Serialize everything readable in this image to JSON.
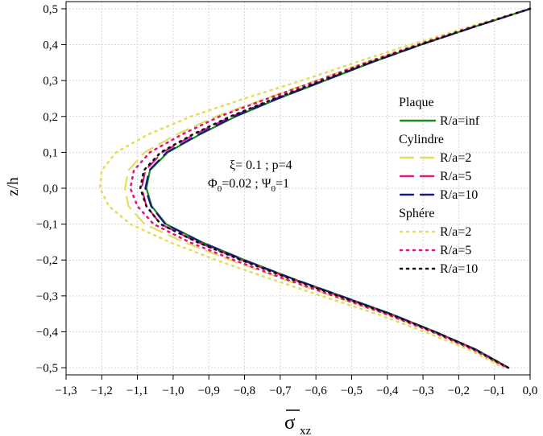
{
  "chart_data": {
    "type": "line",
    "xlabel": "σ",
    "xlabel_sub": "xz",
    "ylabel": "z/h",
    "xlim": [
      -1.3,
      0.0
    ],
    "ylim": [
      -0.52,
      0.52
    ],
    "x_ticks": [
      "−1,3",
      "−1,2",
      "−1,1",
      "−1,0",
      "−0,9",
      "−0,8",
      "−0,7",
      "−0,6",
      "−0,5",
      "−0,4",
      "−0,3",
      "−0,2",
      "−0,1",
      "0,0"
    ],
    "x_tick_values": [
      -1.3,
      -1.2,
      -1.1,
      -1.0,
      -0.9,
      -0.8,
      -0.7,
      -0.6,
      -0.5,
      -0.4,
      -0.3,
      -0.2,
      -0.1,
      0.0
    ],
    "y_ticks": [
      "0,5",
      "0,4",
      "0,3",
      "0,2",
      "0,1",
      "0,0",
      "−0,1",
      "−0,2",
      "−0,3",
      "−0,4",
      "−0,5"
    ],
    "y_tick_values": [
      0.5,
      0.4,
      0.3,
      0.2,
      0.1,
      0.0,
      -0.1,
      -0.2,
      -0.3,
      -0.4,
      -0.5
    ],
    "grid": true,
    "legend_position": "right",
    "annotation_line1": "ξ= 0.1 ; p=4",
    "annotation_line2_a": "Φ",
    "annotation_line2_b": "0",
    "annotation_line2_c": "=0.02 ; Ψ",
    "annotation_line2_d": "0",
    "annotation_line2_e": "=1",
    "legend_groups": [
      {
        "title": "Plaque",
        "entries": [
          0
        ]
      },
      {
        "title": "Cylindre",
        "entries": [
          1,
          2,
          3
        ]
      },
      {
        "title": "Sphére",
        "entries": [
          4,
          5,
          6
        ]
      }
    ],
    "series": [
      {
        "name": "R/a=inf",
        "color": "#1a8a1a",
        "dash": "solid",
        "y": [
          0.5,
          0.45,
          0.4,
          0.35,
          0.3,
          0.25,
          0.2,
          0.15,
          0.1,
          0.05,
          0.0,
          -0.05,
          -0.1,
          -0.15,
          -0.2,
          -0.25,
          -0.3,
          -0.35,
          -0.4,
          -0.45,
          -0.5
        ],
        "x": [
          0.0,
          -0.155,
          -0.305,
          -0.445,
          -0.575,
          -0.705,
          -0.825,
          -0.925,
          -1.015,
          -1.065,
          -1.075,
          -1.06,
          -1.02,
          -0.92,
          -0.8,
          -0.67,
          -0.53,
          -0.39,
          -0.265,
          -0.15,
          -0.06
        ]
      },
      {
        "name": "R/a=2",
        "color": "#e3de5e",
        "dash": "longdash",
        "y": [
          0.5,
          0.45,
          0.4,
          0.35,
          0.3,
          0.25,
          0.2,
          0.15,
          0.1,
          0.05,
          0.0,
          -0.05,
          -0.1,
          -0.15,
          -0.2,
          -0.25,
          -0.3,
          -0.35,
          -0.4,
          -0.45,
          -0.5
        ],
        "x": [
          0.0,
          -0.16,
          -0.315,
          -0.46,
          -0.6,
          -0.74,
          -0.88,
          -0.99,
          -1.08,
          -1.125,
          -1.135,
          -1.125,
          -1.08,
          -0.97,
          -0.84,
          -0.7,
          -0.555,
          -0.405,
          -0.275,
          -0.16,
          -0.07
        ]
      },
      {
        "name": "R/a=5",
        "color": "#e0177e",
        "dash": "longdash",
        "y": [
          0.5,
          0.45,
          0.4,
          0.35,
          0.3,
          0.25,
          0.2,
          0.15,
          0.1,
          0.05,
          0.0,
          -0.05,
          -0.1,
          -0.15,
          -0.2,
          -0.25,
          -0.3,
          -0.35,
          -0.4,
          -0.45,
          -0.5
        ],
        "x": [
          0.0,
          -0.156,
          -0.307,
          -0.448,
          -0.58,
          -0.712,
          -0.836,
          -0.94,
          -1.03,
          -1.078,
          -1.088,
          -1.075,
          -1.035,
          -0.932,
          -0.808,
          -0.676,
          -0.535,
          -0.393,
          -0.267,
          -0.152,
          -0.062
        ]
      },
      {
        "name": "R/a=10",
        "color": "#1a1a80",
        "dash": "longdash",
        "y": [
          0.5,
          0.45,
          0.4,
          0.35,
          0.3,
          0.25,
          0.2,
          0.15,
          0.1,
          0.05,
          0.0,
          -0.05,
          -0.1,
          -0.15,
          -0.2,
          -0.25,
          -0.3,
          -0.35,
          -0.4,
          -0.45,
          -0.5
        ],
        "x": [
          0.0,
          -0.155,
          -0.305,
          -0.446,
          -0.577,
          -0.707,
          -0.828,
          -0.928,
          -1.018,
          -1.067,
          -1.078,
          -1.062,
          -1.022,
          -0.922,
          -0.802,
          -0.671,
          -0.531,
          -0.391,
          -0.266,
          -0.151,
          -0.061
        ]
      },
      {
        "name": "R/a=2",
        "color": "#e3de5e",
        "dash": "dot",
        "y": [
          0.5,
          0.45,
          0.4,
          0.35,
          0.3,
          0.25,
          0.2,
          0.15,
          0.1,
          0.05,
          0.0,
          -0.05,
          -0.1,
          -0.15,
          -0.2,
          -0.25,
          -0.3,
          -0.35,
          -0.4,
          -0.45,
          -0.5
        ],
        "x": [
          0.0,
          -0.17,
          -0.335,
          -0.49,
          -0.64,
          -0.8,
          -0.95,
          -1.07,
          -1.16,
          -1.2,
          -1.205,
          -1.18,
          -1.12,
          -1.01,
          -0.88,
          -0.735,
          -0.585,
          -0.43,
          -0.295,
          -0.17,
          -0.075
        ]
      },
      {
        "name": "R/a=5",
        "color": "#e0177e",
        "dash": "dot",
        "y": [
          0.5,
          0.45,
          0.4,
          0.35,
          0.3,
          0.25,
          0.2,
          0.15,
          0.1,
          0.05,
          0.0,
          -0.05,
          -0.1,
          -0.15,
          -0.2,
          -0.25,
          -0.3,
          -0.35,
          -0.4,
          -0.45,
          -0.5
        ],
        "x": [
          0.0,
          -0.16,
          -0.315,
          -0.46,
          -0.595,
          -0.735,
          -0.87,
          -0.975,
          -1.065,
          -1.11,
          -1.12,
          -1.1,
          -1.055,
          -0.955,
          -0.83,
          -0.695,
          -0.55,
          -0.405,
          -0.275,
          -0.158,
          -0.065
        ]
      },
      {
        "name": "R/a=10",
        "color": "#111111",
        "dash": "dot",
        "y": [
          0.5,
          0.45,
          0.4,
          0.35,
          0.3,
          0.25,
          0.2,
          0.15,
          0.1,
          0.05,
          0.0,
          -0.05,
          -0.1,
          -0.15,
          -0.2,
          -0.25,
          -0.3,
          -0.35,
          -0.4,
          -0.45,
          -0.5
        ],
        "x": [
          0.0,
          -0.157,
          -0.308,
          -0.45,
          -0.583,
          -0.716,
          -0.84,
          -0.945,
          -1.035,
          -1.082,
          -1.092,
          -1.075,
          -1.035,
          -0.933,
          -0.81,
          -0.678,
          -0.537,
          -0.395,
          -0.268,
          -0.153,
          -0.062
        ]
      }
    ]
  }
}
